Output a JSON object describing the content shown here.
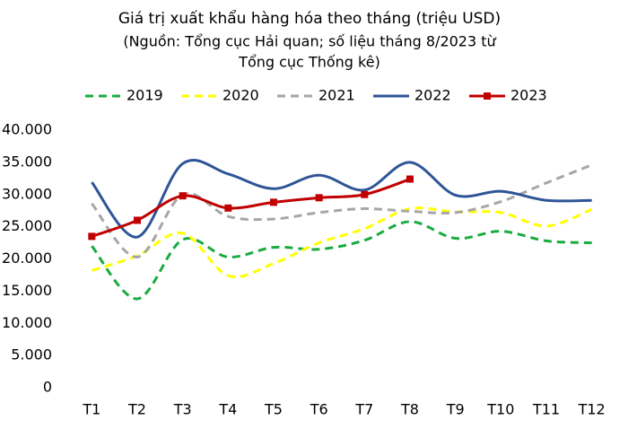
{
  "chart_data": {
    "type": "line",
    "title": "Giá trị xuất khẩu hàng hóa theo tháng (triệu USD)",
    "subtitle": [
      "(Nguồn: Tổng cục Hải quan; số liệu tháng 8/2023 từ",
      "Tổng cục Thống kê)"
    ],
    "categories": [
      "T1",
      "T2",
      "T3",
      "T4",
      "T5",
      "T6",
      "T7",
      "T8",
      "T9",
      "T10",
      "T11",
      "T12"
    ],
    "series": [
      {
        "name": "2019",
        "color": "#1aab40",
        "style": "dashed",
        "values": [
          22000,
          13800,
          23000,
          20300,
          21800,
          21500,
          22900,
          25800,
          23200,
          24300,
          22800,
          22500
        ]
      },
      {
        "name": "2020",
        "color": "#ffff00",
        "style": "dashed",
        "values": [
          18200,
          20500,
          24000,
          17400,
          19300,
          22500,
          24700,
          27800,
          27300,
          27200,
          25100,
          27700
        ]
      },
      {
        "name": "2021",
        "color": "#a6a6a6",
        "style": "dashed",
        "values": [
          28600,
          20300,
          30000,
          26600,
          26200,
          27200,
          27800,
          27400,
          27200,
          28900,
          31800,
          34600
        ]
      },
      {
        "name": "2022",
        "color": "#2f5597",
        "style": "solid",
        "values": [
          31900,
          23400,
          34800,
          33200,
          30900,
          33000,
          30700,
          35000,
          29900,
          30500,
          29100,
          29100
        ]
      },
      {
        "name": "2023",
        "color": "#c00000",
        "style": "solid",
        "marker": "square",
        "values": [
          23500,
          26000,
          29800,
          27900,
          28800,
          29500,
          30000,
          32400,
          null,
          null,
          null,
          null
        ]
      }
    ],
    "ylim": [
      0,
      40000
    ],
    "yticks": [
      0,
      {
        "value": 5000,
        "label": "5.000"
      },
      {
        "value": 10000,
        "label": "10.000"
      },
      {
        "value": 15000,
        "label": "15.000"
      },
      {
        "value": 20000,
        "label": "20.000"
      },
      {
        "value": 25000,
        "label": "25.000"
      },
      {
        "value": 30000,
        "label": "30.000"
      },
      {
        "value": 35000,
        "label": "35.000"
      },
      {
        "value": 40000,
        "label": "40.000"
      }
    ],
    "grid": false,
    "legend": "top"
  }
}
